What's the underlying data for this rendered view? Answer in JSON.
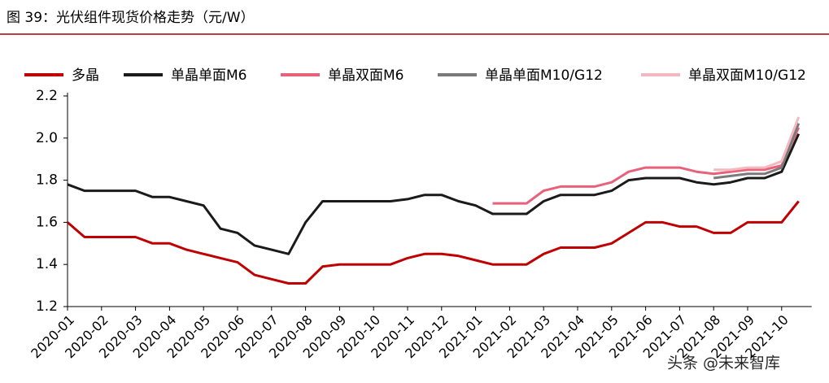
{
  "chart_data": {
    "type": "line",
    "title": "图 39：光伏组件现货价格走势（元/W）",
    "watermark": "头条 @未来智库",
    "categories": [
      "2020-01",
      null,
      "2020-02",
      null,
      "2020-03",
      null,
      "2020-04",
      null,
      "2020-05",
      null,
      "2020-06",
      null,
      "2020-07",
      null,
      "2020-08",
      null,
      "2020-09",
      null,
      "2020-10",
      null,
      "2020-11",
      null,
      "2020-12",
      null,
      "2021-01",
      null,
      "2021-02",
      null,
      "2021-03",
      null,
      "2021-04",
      null,
      "2021-05",
      null,
      "2021-06",
      null,
      "2021-07",
      null,
      "2021-08",
      null,
      "2021-09",
      null,
      "2021-10",
      null
    ],
    "series": [
      {
        "name": "多晶",
        "color": "#c00000",
        "values": [
          1.6,
          1.53,
          1.53,
          1.53,
          1.53,
          1.5,
          1.5,
          1.47,
          1.45,
          1.43,
          1.41,
          1.35,
          1.33,
          1.31,
          1.31,
          1.39,
          1.4,
          1.4,
          1.4,
          1.4,
          1.43,
          1.45,
          1.45,
          1.44,
          1.42,
          1.4,
          1.4,
          1.4,
          1.45,
          1.48,
          1.48,
          1.48,
          1.5,
          1.55,
          1.6,
          1.6,
          1.58,
          1.58,
          1.55,
          1.55,
          1.6,
          1.6,
          1.6,
          1.7
        ]
      },
      {
        "name": "单晶单面M6",
        "color": "#1a1a1a",
        "values": [
          1.78,
          1.75,
          1.75,
          1.75,
          1.75,
          1.72,
          1.72,
          1.7,
          1.68,
          1.57,
          1.55,
          1.49,
          1.47,
          1.45,
          1.6,
          1.7,
          1.7,
          1.7,
          1.7,
          1.7,
          1.71,
          1.73,
          1.73,
          1.7,
          1.68,
          1.64,
          1.64,
          1.64,
          1.7,
          1.73,
          1.73,
          1.73,
          1.75,
          1.8,
          1.81,
          1.81,
          1.81,
          1.79,
          1.78,
          1.79,
          1.81,
          1.81,
          1.84,
          2.02
        ]
      },
      {
        "name": "单晶双面M6",
        "color": "#e8607a",
        "values": [
          null,
          null,
          null,
          null,
          null,
          null,
          null,
          null,
          null,
          null,
          null,
          null,
          null,
          null,
          null,
          null,
          null,
          null,
          null,
          null,
          null,
          null,
          null,
          null,
          null,
          1.69,
          1.69,
          1.69,
          1.75,
          1.77,
          1.77,
          1.77,
          1.79,
          1.84,
          1.86,
          1.86,
          1.86,
          1.84,
          1.83,
          1.84,
          1.85,
          1.85,
          1.87,
          2.05
        ]
      },
      {
        "name": "单晶单面M10/G12",
        "color": "#7a7a7a",
        "values": [
          null,
          null,
          null,
          null,
          null,
          null,
          null,
          null,
          null,
          null,
          null,
          null,
          null,
          null,
          null,
          null,
          null,
          null,
          null,
          null,
          null,
          null,
          null,
          null,
          null,
          null,
          null,
          null,
          null,
          null,
          null,
          null,
          null,
          null,
          null,
          null,
          null,
          null,
          1.81,
          1.82,
          1.83,
          1.83,
          1.86,
          2.07
        ]
      },
      {
        "name": "单晶双面M10/G12",
        "color": "#f4b8c0",
        "values": [
          null,
          null,
          null,
          null,
          null,
          null,
          null,
          null,
          null,
          null,
          null,
          null,
          null,
          null,
          null,
          null,
          null,
          null,
          null,
          null,
          null,
          null,
          null,
          null,
          null,
          null,
          null,
          null,
          null,
          null,
          null,
          null,
          null,
          null,
          null,
          null,
          null,
          null,
          1.85,
          1.85,
          1.86,
          1.86,
          1.89,
          2.1
        ]
      }
    ],
    "ylim": [
      1.2,
      2.2
    ],
    "yticks": [
      1.2,
      1.4,
      1.6,
      1.8,
      {
        "value": 2,
        "label": "2.0"
      },
      2.2
    ],
    "grid": false
  }
}
